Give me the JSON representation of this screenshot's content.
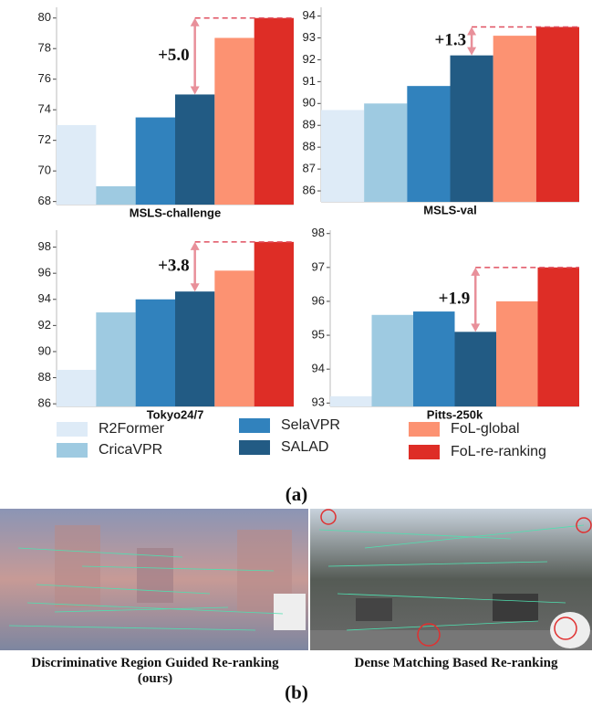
{
  "chart_data": [
    {
      "type": "bar",
      "xlabel": "MSLS-challenge",
      "values": [
        73.0,
        69.0,
        73.5,
        75.0,
        78.7,
        80.0
      ],
      "ylim": [
        67.8,
        80.7
      ],
      "yticks": [
        68,
        70,
        72,
        74,
        76,
        78,
        80
      ],
      "annotation": "+5.0"
    },
    {
      "type": "bar",
      "xlabel": "MSLS-val",
      "values": [
        89.7,
        90.0,
        90.8,
        92.2,
        93.1,
        93.5
      ],
      "ylim": [
        85.5,
        94.4
      ],
      "yticks": [
        86,
        87,
        88,
        89,
        90,
        91,
        92,
        93,
        94
      ],
      "annotation": "+1.3"
    },
    {
      "type": "bar",
      "xlabel": "Tokyo24/7",
      "values": [
        88.6,
        93.0,
        94.0,
        94.6,
        96.2,
        98.4
      ],
      "ylim": [
        85.8,
        99.3
      ],
      "yticks": [
        86,
        88,
        90,
        92,
        94,
        96,
        98
      ],
      "annotation": "+3.8"
    },
    {
      "type": "bar",
      "xlabel": "Pitts-250k",
      "values": [
        93.2,
        95.6,
        95.7,
        95.1,
        96.0,
        97.0
      ],
      "ylim": [
        92.9,
        98.1
      ],
      "yticks": [
        93,
        94,
        95,
        96,
        97,
        98
      ],
      "annotation": "+1.9"
    }
  ],
  "legend": [
    {
      "name": "R2Former",
      "color": "#deebf7"
    },
    {
      "name": "CricaVPR",
      "color": "#9ecae1"
    },
    {
      "name": "SelaVPR",
      "color": "#3182bd"
    },
    {
      "name": "SALAD",
      "color": "#225b84"
    },
    {
      "name": "FoL-global",
      "color": "#fc9272"
    },
    {
      "name": "FoL-re-ranking",
      "color": "#de2d26"
    }
  ],
  "panel_a_label": "(a)",
  "panel_b": {
    "captions": [
      "Discriminative Region Guided Re-ranking  (ours)",
      "Dense  Matching Based Re-ranking"
    ],
    "label": "(b)"
  }
}
